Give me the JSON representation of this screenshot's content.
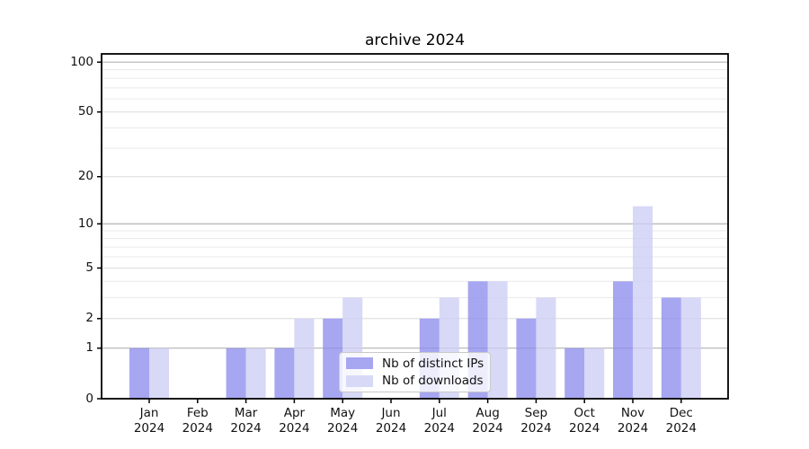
{
  "chart_data": {
    "type": "bar",
    "title": "archive 2024",
    "categories": [
      "Jan",
      "Feb",
      "Mar",
      "Apr",
      "May",
      "Jun",
      "Jul",
      "Aug",
      "Sep",
      "Oct",
      "Nov",
      "Dec"
    ],
    "x_year_label": "2024",
    "series": [
      {
        "name": "Nb of distinct IPs",
        "color": "#a6a6f1",
        "values": [
          1,
          0,
          1,
          1,
          2,
          0,
          2,
          4,
          2,
          1,
          4,
          3
        ]
      },
      {
        "name": "Nb of downloads",
        "color": "#d8d8f7",
        "values": [
          1,
          0,
          1,
          2,
          3,
          0,
          3,
          4,
          3,
          1,
          13,
          3
        ]
      }
    ],
    "xlabel": "",
    "ylabel": "",
    "yscale": "log1p",
    "ylim": [
      0,
      100
    ],
    "y_ticks": [
      0,
      1,
      2,
      5,
      10,
      20,
      50,
      100
    ],
    "y_decade_ticks": [
      1,
      10,
      100
    ],
    "y_minor_ticks": [
      3,
      4,
      6,
      7,
      8,
      9,
      30,
      40,
      60,
      70,
      80,
      90
    ],
    "grid": "on",
    "legend_position": "lower center",
    "colors": {
      "grid_major": "#b3b3b3",
      "grid_mid": "#dcdcdc",
      "grid_minor": "#eaeaea",
      "axis": "#000000",
      "tick_text": "#111111"
    }
  }
}
